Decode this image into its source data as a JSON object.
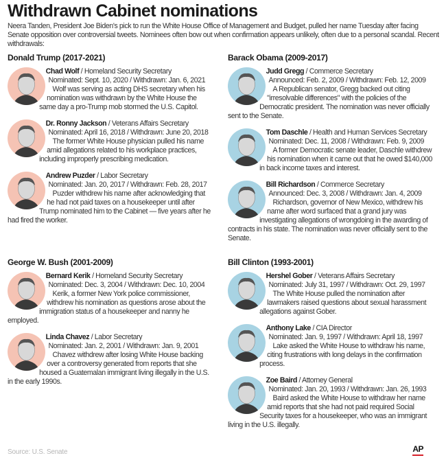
{
  "title": "Withdrawn Cabinet nominations",
  "intro": "Neera Tanden, President Joe Biden's pick to run the White House Office of Management and Budget, pulled her name Tuesday after facing Senate opposition over controversial tweets. Nominees often bow out when confirmation appears unlikely, often due to a personal scandal. Recent withdrawals:",
  "colors": {
    "republican_photo_bg": "#f5c3b4",
    "democrat_photo_bg": "#a8d3e3",
    "ap_underline": "#d6202a"
  },
  "sections": [
    {
      "header": "Donald Trump (2017-2021)",
      "entries": [
        {
          "name": "Chad Wolf",
          "role": " / Homeland Security Secretary",
          "dates": "Nominated: Sept. 10, 2020 / Withdrawn: Jan. 6, 2021",
          "desc": "Wolf was serving as acting DHS secretary when his nomination was withdrawn by the White House the same day a pro-Trump mob stormed the U.S. Capitol."
        },
        {
          "name": "Dr. Ronny Jackson",
          "role": " / Veterans Affairs Secretary",
          "dates": "Nominated: April 16, 2018 / Withdrawn: June 20, 2018",
          "desc": "The former White House physician pulled his name amid allegations related to his workplace practices, including improperly prescribing medication."
        },
        {
          "name": "Andrew Puzder",
          "role": " / Labor Secretary",
          "dates": "Nominated: Jan. 20, 2017 / Withdrawn: Feb. 28, 2017",
          "desc": "Puzder withdrew his name after acknowledging that he had not paid taxes on a housekeeper until after Trump nominated him to the Cabinet — five years after he had fired the worker."
        }
      ]
    },
    {
      "header": "George W. Bush (2001-2009)",
      "entries": [
        {
          "name": "Bernard Kerik",
          "role": " / Homeland Security Secretary",
          "dates": "Nominated: Dec. 3, 2004 / Withdrawn: Dec. 10, 2004",
          "desc": "Kerik, a former New York police commissioner, withdrew his nomination as questions arose about the immigration status of a housekeeper and nanny he employed."
        },
        {
          "name": "Linda Chavez",
          "role": " / Labor Secretary",
          "dates": "Nominated: Jan. 2, 2001 / Withdrawn: Jan. 9, 2001",
          "desc": "Chavez withdrew after losing White House backing over a controversy generated from reports that she housed a Guatemalan immigrant living illegally in the U.S. in the early 1990s."
        }
      ]
    },
    {
      "header": "Barack Obama (2009-2017)",
      "entries": [
        {
          "name": "Judd Gregg",
          "role": " / Commerce Secretary",
          "dates": "Announced: Feb. 2, 2009 / Withdrawn: Feb. 12, 2009",
          "desc": "A Republican senator, Gregg backed out citing \"irresolvable differences\" with the policies of the Democratic president. The nomination was never officially sent to the Senate."
        },
        {
          "name": "Tom Daschle",
          "role": " / Health and Human Services Secretary",
          "dates": "Nominated: Dec. 11, 2008 / Withdrawn: Feb. 9, 2009",
          "desc": "A former Democratic senate leader, Daschle withdrew his nomination when it came out that he owed $140,000 in back income taxes and interest."
        },
        {
          "name": "Bill Richardson",
          "role": " / Commerce Secretary",
          "dates": "Announced: Dec. 3, 2008 / Withdrawn: Jan. 4, 2009",
          "desc": "Richardson, governor of New Mexico, withdrew his name after word surfaced that a grand jury was investigating allegations of wrongdoing in the awarding of contracts in his state. The nomination was never officially sent to the Senate."
        }
      ]
    },
    {
      "header": "Bill Clinton (1993-2001)",
      "entries": [
        {
          "name": "Hershel Gober",
          "role": " / Veterans Affairs Secretary",
          "dates": "Nominated: July 31, 1997 / Withdrawn: Oct. 29, 1997",
          "desc": "The White House pulled the nomination after lawmakers raised questions about sexual harassment allegations against Gober."
        },
        {
          "name": "Anthony Lake",
          "role": " / CIA Director",
          "dates": "Nominated: Jan. 9, 1997 / Withdrawn: April 18, 1997",
          "desc": "Lake asked the White House to withdraw his name, citing frustrations with long delays in the confirmation process."
        },
        {
          "name": "Zoe Baird",
          "role": " / Attorney General",
          "dates": "Nominated: Jan. 20, 1993 / Withdrawn: Jan. 26, 1993",
          "desc": "Baird asked the White House to withdraw her name amid reports that she had not paid required Social Security taxes for a housekeeper, who was an immigrant living in the U.S. illegally."
        }
      ]
    }
  ],
  "source": "Source: U.S. Senate",
  "logo": "AP"
}
